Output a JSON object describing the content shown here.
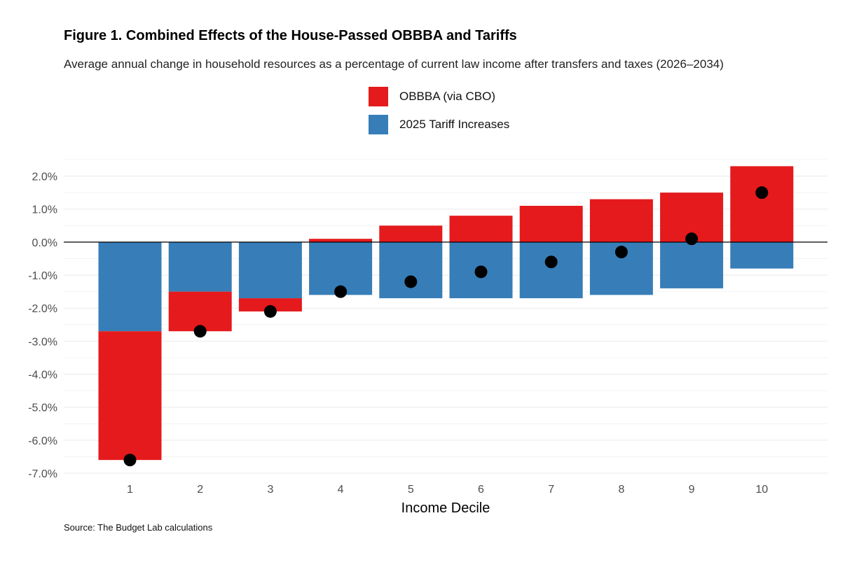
{
  "colors": {
    "obbba": "#e41a1c",
    "tariff": "#377eb8",
    "net_marker": "#000000",
    "grid": "#ebebeb"
  },
  "legend": [
    {
      "name": "OBBBA (via CBO)",
      "color": "#e41a1c"
    },
    {
      "name": "2025 Tariff Increases",
      "color": "#377eb8"
    }
  ],
  "source": "Source: The Budget Lab calculations",
  "chart_data": {
    "type": "bar",
    "title": "Figure 1. Combined Effects of the House-Passed OBBBA and Tariffs",
    "subtitle": "Average annual change in household resources as a percentage of current law income after transfers and taxes (2026–2034)",
    "xlabel": "Income Decile",
    "ylabel": "",
    "categories": [
      "1",
      "2",
      "3",
      "4",
      "5",
      "6",
      "7",
      "8",
      "9",
      "10"
    ],
    "series": [
      {
        "name": "2025 Tariff Increases",
        "values": [
          -2.7,
          -1.5,
          -1.7,
          -1.6,
          -1.7,
          -1.7,
          -1.7,
          -1.6,
          -1.4,
          -0.8
        ]
      },
      {
        "name": "OBBBA (via CBO)",
        "values": [
          -3.9,
          -1.2,
          -0.4,
          0.1,
          0.5,
          0.8,
          1.1,
          1.3,
          1.5,
          2.3
        ]
      }
    ],
    "net": [
      -6.6,
      -2.7,
      -2.1,
      -1.5,
      -1.2,
      -0.9,
      -0.6,
      -0.3,
      0.1,
      1.5
    ],
    "ylim": [
      -7.0,
      2.5
    ],
    "yticks": [
      2.0,
      1.0,
      0.0,
      -1.0,
      -2.0,
      -3.0,
      -4.0,
      -5.0,
      -6.0,
      -7.0
    ],
    "ytick_labels": [
      "2.0%",
      "1.0%",
      "0.0%",
      "-1.0%",
      "-2.0%",
      "-3.0%",
      "-4.0%",
      "-5.0%",
      "-6.0%",
      "-7.0%"
    ],
    "grid": true,
    "legend_position": "top"
  }
}
